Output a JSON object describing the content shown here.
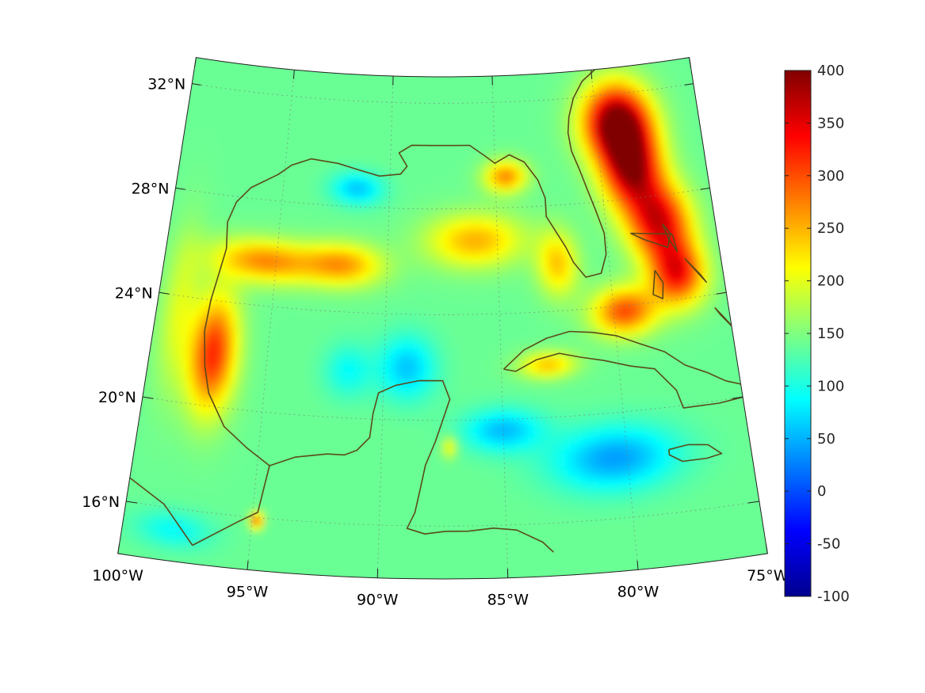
{
  "map": {
    "projection": "conic",
    "lon_range": [
      -100,
      -75
    ],
    "lat_range": [
      14,
      33
    ],
    "lon_ticks": [
      {
        "lon": -100,
        "label": "100°W"
      },
      {
        "lon": -95,
        "label": "95°W"
      },
      {
        "lon": -90,
        "label": "90°W"
      },
      {
        "lon": -85,
        "label": "85°W"
      },
      {
        "lon": -80,
        "label": "80°W"
      },
      {
        "lon": -75,
        "label": "75°W"
      }
    ],
    "lat_ticks": [
      {
        "lat": 32,
        "label": "32°N"
      },
      {
        "lat": 28,
        "label": "28°N"
      },
      {
        "lat": 24,
        "label": "24°N"
      },
      {
        "lat": 20,
        "label": "20°N"
      },
      {
        "lat": 16,
        "label": "16°N"
      }
    ],
    "grid": true,
    "coastline_color": "#5a4a1a"
  },
  "colorbar": {
    "colormap": "jet",
    "min": -100,
    "max": 400,
    "ticks": [
      "400",
      "350",
      "300",
      "250",
      "200",
      "150",
      "100",
      "50",
      "0",
      "-50",
      "-100"
    ],
    "tick_values": [
      400,
      350,
      300,
      250,
      200,
      150,
      100,
      50,
      0,
      -50,
      -100
    ],
    "placement": "right"
  },
  "field": {
    "background_value": 140,
    "features": [
      {
        "lon": -79,
        "lat": 31,
        "value": 395,
        "spread_lon": 1.6,
        "spread_lat": 1.4
      },
      {
        "lon": -78.5,
        "lat": 29.2,
        "value": 380,
        "spread_lon": 1.4,
        "spread_lat": 1.6
      },
      {
        "lon": -77.5,
        "lat": 27,
        "value": 340,
        "spread_lon": 1.4,
        "spread_lat": 1.4
      },
      {
        "lon": -77,
        "lat": 25,
        "value": 330,
        "spread_lon": 1.2,
        "spread_lat": 1.2
      },
      {
        "lon": -79.5,
        "lat": 23.8,
        "value": 300,
        "spread_lon": 1.4,
        "spread_lat": 0.9
      },
      {
        "lon": -97.3,
        "lat": 22,
        "value": 320,
        "spread_lon": 1.0,
        "spread_lat": 2.2
      },
      {
        "lon": -95.5,
        "lat": 25.7,
        "value": 270,
        "spread_lon": 2.2,
        "spread_lat": 0.8
      },
      {
        "lon": -92,
        "lat": 25.8,
        "value": 260,
        "spread_lon": 1.8,
        "spread_lat": 0.8
      },
      {
        "lon": -86,
        "lat": 26.8,
        "value": 250,
        "spread_lon": 2.2,
        "spread_lat": 1.0
      },
      {
        "lon": -84.5,
        "lat": 29.2,
        "value": 270,
        "spread_lon": 1.0,
        "spread_lat": 0.6
      },
      {
        "lon": -82.3,
        "lat": 25.8,
        "value": 240,
        "spread_lon": 0.9,
        "spread_lat": 1.2
      },
      {
        "lon": -83,
        "lat": 22.0,
        "value": 240,
        "spread_lon": 1.2,
        "spread_lat": 0.5
      },
      {
        "lon": -91.5,
        "lat": 28.7,
        "value": 60,
        "spread_lon": 1.2,
        "spread_lat": 0.6
      },
      {
        "lon": -89,
        "lat": 22,
        "value": 60,
        "spread_lon": 1.2,
        "spread_lat": 1.2
      },
      {
        "lon": -91.5,
        "lat": 21.8,
        "value": 90,
        "spread_lon": 1.0,
        "spread_lat": 1.0
      },
      {
        "lon": -80.5,
        "lat": 18.3,
        "value": 40,
        "spread_lon": 2.5,
        "spread_lat": 1.2
      },
      {
        "lon": -85,
        "lat": 19.6,
        "value": 55,
        "spread_lon": 1.6,
        "spread_lat": 0.8
      },
      {
        "lon": -98,
        "lat": 15.2,
        "value": 90,
        "spread_lon": 1.5,
        "spread_lat": 0.7
      },
      {
        "lon": -94.8,
        "lat": 15.9,
        "value": 300,
        "spread_lon": 0.25,
        "spread_lat": 0.3
      },
      {
        "lon": -99,
        "lat": 23.5,
        "value": 195,
        "spread_lon": 0.8,
        "spread_lat": 3.0
      },
      {
        "lon": -87.2,
        "lat": 19.0,
        "value": 215,
        "spread_lon": 0.3,
        "spread_lat": 0.4
      }
    ]
  }
}
